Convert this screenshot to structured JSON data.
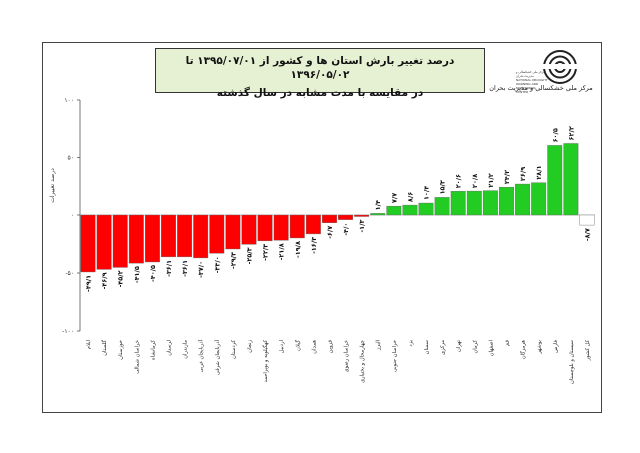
{
  "header": {
    "title_line1": "درصد تغییر بارش استان ها و کشور از ۱۳۹۵/۰۷/۰۱ تا ۱۳۹۶/۰۵/۰۲",
    "title_line2": "در مقایسه با مدت مشابه در سال گذشته",
    "logo_caption": "مرکز ملی خشکسالی و مدیریت بحران",
    "logo_caption_small": "مرکز ملی خشکسالی و مدیریت بحران NATIONAL DROUGHT WARNING AND MONITORING CENTER"
  },
  "colors": {
    "negative": "#ff0000",
    "positive": "#22cc22",
    "country": "#ffffff"
  },
  "chart_data": {
    "type": "bar",
    "title": "درصد تغییر بارش استان ها و کشور از ۱۳۹۵/۰۷/۰۱ تا ۱۳۹۶/۰۵/۰۲",
    "subtitle": "در مقایسه با مدت مشابه در سال گذشته",
    "ylabel": "درصد تغییرات",
    "xlabel": "",
    "ylim": [
      -100,
      100
    ],
    "yticks": [
      100,
      50,
      0,
      -50,
      -100
    ],
    "ytick_labels": [
      "۱۰۰",
      "۵۰",
      "۰",
      "-۵۰",
      "-۱۰۰"
    ],
    "grid": false,
    "categories": [
      "ایلام",
      "گلستان",
      "خوزستان",
      "خراسان شمالی",
      "کرمانشاه",
      "لرستان",
      "مازندران",
      "آذربایجان غربی",
      "آذربایجان شرقی",
      "کردستان",
      "زنجان",
      "کهگیلویه و بویراحمد",
      "اردبیل",
      "گیلان",
      "همدان",
      "قزوین",
      "خراسان رضوی",
      "چهارمحال و بختیاری",
      "البرز",
      "خراسان جنوبی",
      "یزد",
      "سمنان",
      "مرکزی",
      "تهران",
      "کرمان",
      "اصفهان",
      "قم",
      "هرمزگان",
      "بوشهر",
      "فارس",
      "سیستان و بلوچستان",
      "کل کشور"
    ],
    "values": [
      -49.1,
      -46.9,
      -45.2,
      -41.5,
      -40.5,
      -36.1,
      -36.1,
      -37.0,
      -33.0,
      -29.3,
      -25.3,
      -22.3,
      -21.8,
      -19.8,
      -16.3,
      -6.7,
      -4.0,
      -1.3,
      1.4,
      7.7,
      8.6,
      10.4,
      15.3,
      20.6,
      20.8,
      21.2,
      24.2,
      26.9,
      28.1,
      60.5,
      62.2,
      -8.7
    ],
    "value_labels": [
      "-۴۹/۱",
      "-۴۶/۹",
      "-۴۵/۲",
      "-۴۱/۵",
      "-۴۰/۵",
      "-۳۶/۱",
      "-۳۶/۱",
      "-۳۷/۰",
      "-۳۳/۰",
      "-۲۹/۳",
      "-۲۵/۳",
      "-۲۲/۳",
      "-۲۱/۸",
      "-۱۹/۸",
      "-۱۶/۳",
      "-۶/۷",
      "-۴/۰",
      "-۱/۳",
      "۱/۴",
      "۷/۷",
      "۸/۶",
      "۱۰/۴",
      "۱۵/۳",
      "۲۰/۶",
      "۲۰/۸",
      "۲۱/۲",
      "۲۴/۲",
      "۲۶/۹",
      "۲۸/۱",
      "۶۰/۵",
      "۶۲/۲",
      "-۸/۷"
    ]
  }
}
